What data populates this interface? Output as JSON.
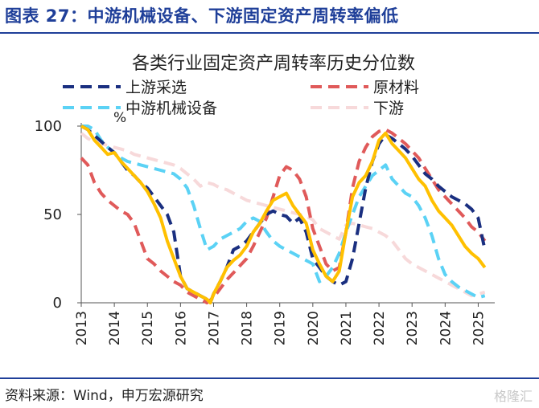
{
  "figure_title": "图表 27：中游机械设备、下游固定资产周转率偏低",
  "source": "资料来源：Wind，申万宏源研究",
  "watermark": "格隆汇",
  "chart_data": {
    "type": "line",
    "title": "各类行业固定资产周转率历史分位数",
    "ylabel": "%",
    "ylim": [
      0,
      100
    ],
    "xlim": [
      2013,
      2025.5
    ],
    "yticks": [
      0,
      50,
      100
    ],
    "xticks": [
      "2013",
      "2014",
      "2015",
      "2016",
      "2017",
      "2018",
      "2019",
      "2020",
      "2021",
      "2022",
      "2023",
      "2024",
      "2025"
    ],
    "legend_position": "top",
    "series": [
      {
        "name": "上游采选",
        "color": "#1a2f80",
        "dash": "long",
        "points": [
          [
            2013.0,
            100
          ],
          [
            2013.2,
            98
          ],
          [
            2013.5,
            93
          ],
          [
            2013.8,
            88
          ],
          [
            2014.0,
            85
          ],
          [
            2014.2,
            80
          ],
          [
            2014.4,
            75
          ],
          [
            2014.6,
            72
          ],
          [
            2014.8,
            68
          ],
          [
            2015.0,
            65
          ],
          [
            2015.2,
            60
          ],
          [
            2015.4,
            55
          ],
          [
            2015.6,
            50
          ],
          [
            2015.8,
            40
          ],
          [
            2016.0,
            15
          ],
          [
            2016.2,
            8
          ],
          [
            2016.4,
            6
          ],
          [
            2016.6,
            4
          ],
          [
            2016.8,
            2
          ],
          [
            2016.9,
            0
          ],
          [
            2017.0,
            5
          ],
          [
            2017.2,
            12
          ],
          [
            2017.4,
            20
          ],
          [
            2017.6,
            30
          ],
          [
            2017.8,
            32
          ],
          [
            2018.0,
            35
          ],
          [
            2018.2,
            40
          ],
          [
            2018.4,
            45
          ],
          [
            2018.6,
            50
          ],
          [
            2018.8,
            52
          ],
          [
            2019.0,
            50
          ],
          [
            2019.2,
            49
          ],
          [
            2019.4,
            45
          ],
          [
            2019.6,
            48
          ],
          [
            2019.8,
            40
          ],
          [
            2020.0,
            25
          ],
          [
            2020.2,
            20
          ],
          [
            2020.4,
            15
          ],
          [
            2020.6,
            12
          ],
          [
            2020.8,
            10
          ],
          [
            2021.0,
            12
          ],
          [
            2021.2,
            25
          ],
          [
            2021.4,
            45
          ],
          [
            2021.6,
            65
          ],
          [
            2021.8,
            80
          ],
          [
            2022.0,
            90
          ],
          [
            2022.2,
            95
          ],
          [
            2022.4,
            93
          ],
          [
            2022.6,
            90
          ],
          [
            2022.8,
            87
          ],
          [
            2023.0,
            83
          ],
          [
            2023.2,
            78
          ],
          [
            2023.4,
            73
          ],
          [
            2023.6,
            70
          ],
          [
            2023.8,
            66
          ],
          [
            2024.0,
            63
          ],
          [
            2024.2,
            60
          ],
          [
            2024.4,
            58
          ],
          [
            2024.6,
            56
          ],
          [
            2024.8,
            53
          ],
          [
            2025.0,
            48
          ],
          [
            2025.2,
            30
          ]
        ]
      },
      {
        "name": "原材料",
        "color": "#e05a5a",
        "dash": "long",
        "points": [
          [
            2013.0,
            82
          ],
          [
            2013.2,
            78
          ],
          [
            2013.4,
            68
          ],
          [
            2013.6,
            62
          ],
          [
            2013.8,
            58
          ],
          [
            2014.0,
            55
          ],
          [
            2014.2,
            52
          ],
          [
            2014.4,
            50
          ],
          [
            2014.6,
            45
          ],
          [
            2014.8,
            35
          ],
          [
            2015.0,
            25
          ],
          [
            2015.2,
            22
          ],
          [
            2015.4,
            18
          ],
          [
            2015.6,
            15
          ],
          [
            2015.8,
            12
          ],
          [
            2016.0,
            10
          ],
          [
            2016.2,
            6
          ],
          [
            2016.4,
            4
          ],
          [
            2016.6,
            2
          ],
          [
            2016.8,
            0
          ],
          [
            2017.0,
            3
          ],
          [
            2017.2,
            8
          ],
          [
            2017.4,
            13
          ],
          [
            2017.6,
            17
          ],
          [
            2017.8,
            21
          ],
          [
            2018.0,
            25
          ],
          [
            2018.2,
            32
          ],
          [
            2018.4,
            40
          ],
          [
            2018.6,
            48
          ],
          [
            2018.8,
            60
          ],
          [
            2019.0,
            72
          ],
          [
            2019.2,
            77
          ],
          [
            2019.4,
            75
          ],
          [
            2019.6,
            70
          ],
          [
            2019.8,
            60
          ],
          [
            2020.0,
            42
          ],
          [
            2020.2,
            32
          ],
          [
            2020.4,
            22
          ],
          [
            2020.6,
            18
          ],
          [
            2020.8,
            20
          ],
          [
            2021.0,
            40
          ],
          [
            2021.2,
            65
          ],
          [
            2021.4,
            80
          ],
          [
            2021.6,
            88
          ],
          [
            2021.8,
            94
          ],
          [
            2022.0,
            97
          ],
          [
            2022.2,
            98
          ],
          [
            2022.4,
            96
          ],
          [
            2022.6,
            93
          ],
          [
            2022.8,
            90
          ],
          [
            2023.0,
            86
          ],
          [
            2023.2,
            82
          ],
          [
            2023.4,
            76
          ],
          [
            2023.6,
            70
          ],
          [
            2023.8,
            64
          ],
          [
            2024.0,
            60
          ],
          [
            2024.2,
            56
          ],
          [
            2024.4,
            52
          ],
          [
            2024.6,
            48
          ],
          [
            2024.8,
            43
          ],
          [
            2025.0,
            40
          ],
          [
            2025.2,
            35
          ]
        ]
      },
      {
        "name": "中游机械设备",
        "color": "#5bd2f5",
        "dash": "long",
        "points": [
          [
            2013.0,
            100
          ],
          [
            2013.2,
            100
          ],
          [
            2013.4,
            98
          ],
          [
            2013.6,
            92
          ],
          [
            2013.8,
            88
          ],
          [
            2014.0,
            85
          ],
          [
            2014.2,
            82
          ],
          [
            2014.4,
            80
          ],
          [
            2014.6,
            79
          ],
          [
            2014.8,
            78
          ],
          [
            2015.0,
            77
          ],
          [
            2015.2,
            76
          ],
          [
            2015.4,
            75
          ],
          [
            2015.6,
            74
          ],
          [
            2015.8,
            73
          ],
          [
            2016.0,
            70
          ],
          [
            2016.2,
            65
          ],
          [
            2016.4,
            55
          ],
          [
            2016.6,
            42
          ],
          [
            2016.8,
            30
          ],
          [
            2017.0,
            32
          ],
          [
            2017.2,
            36
          ],
          [
            2017.4,
            38
          ],
          [
            2017.6,
            40
          ],
          [
            2017.8,
            42
          ],
          [
            2018.0,
            46
          ],
          [
            2018.2,
            48
          ],
          [
            2018.4,
            46
          ],
          [
            2018.6,
            40
          ],
          [
            2018.8,
            35
          ],
          [
            2019.0,
            32
          ],
          [
            2019.2,
            30
          ],
          [
            2019.4,
            28
          ],
          [
            2019.6,
            26
          ],
          [
            2019.8,
            24
          ],
          [
            2020.0,
            22
          ],
          [
            2020.2,
            12
          ],
          [
            2020.4,
            15
          ],
          [
            2020.6,
            20
          ],
          [
            2020.8,
            28
          ],
          [
            2021.0,
            40
          ],
          [
            2021.2,
            50
          ],
          [
            2021.4,
            60
          ],
          [
            2021.6,
            66
          ],
          [
            2021.8,
            72
          ],
          [
            2022.0,
            75
          ],
          [
            2022.2,
            78
          ],
          [
            2022.4,
            70
          ],
          [
            2022.6,
            66
          ],
          [
            2022.8,
            62
          ],
          [
            2023.0,
            60
          ],
          [
            2023.2,
            55
          ],
          [
            2023.4,
            48
          ],
          [
            2023.6,
            38
          ],
          [
            2023.8,
            25
          ],
          [
            2024.0,
            16
          ],
          [
            2024.2,
            12
          ],
          [
            2024.4,
            9
          ],
          [
            2024.6,
            7
          ],
          [
            2024.8,
            5
          ],
          [
            2025.0,
            3
          ],
          [
            2025.2,
            4
          ]
        ]
      },
      {
        "name": "下游",
        "color": "#f7d9da",
        "dash": "long",
        "points": [
          [
            2013.0,
            96
          ],
          [
            2013.2,
            93
          ],
          [
            2013.4,
            91
          ],
          [
            2013.6,
            90
          ],
          [
            2013.8,
            89
          ],
          [
            2014.0,
            88
          ],
          [
            2014.2,
            87
          ],
          [
            2014.4,
            86
          ],
          [
            2014.6,
            84
          ],
          [
            2014.8,
            83
          ],
          [
            2015.0,
            82
          ],
          [
            2015.2,
            81
          ],
          [
            2015.4,
            80
          ],
          [
            2015.6,
            79
          ],
          [
            2015.8,
            78
          ],
          [
            2016.0,
            76
          ],
          [
            2016.2,
            73
          ],
          [
            2016.4,
            70
          ],
          [
            2016.6,
            66
          ],
          [
            2016.8,
            68
          ],
          [
            2017.0,
            67
          ],
          [
            2017.2,
            65
          ],
          [
            2017.4,
            64
          ],
          [
            2017.6,
            62
          ],
          [
            2017.8,
            60
          ],
          [
            2018.0,
            58
          ],
          [
            2018.2,
            57
          ],
          [
            2018.4,
            56
          ],
          [
            2018.6,
            55
          ],
          [
            2018.8,
            54
          ],
          [
            2019.0,
            53
          ],
          [
            2019.2,
            52
          ],
          [
            2019.4,
            51
          ],
          [
            2019.6,
            50
          ],
          [
            2019.8,
            49
          ],
          [
            2020.0,
            47
          ],
          [
            2020.2,
            42
          ],
          [
            2020.4,
            40
          ],
          [
            2020.6,
            38
          ],
          [
            2020.8,
            36
          ],
          [
            2021.0,
            44
          ],
          [
            2021.2,
            45
          ],
          [
            2021.4,
            44
          ],
          [
            2021.6,
            43
          ],
          [
            2021.8,
            42
          ],
          [
            2022.0,
            40
          ],
          [
            2022.2,
            38
          ],
          [
            2022.4,
            35
          ],
          [
            2022.6,
            30
          ],
          [
            2022.8,
            25
          ],
          [
            2023.0,
            22
          ],
          [
            2023.2,
            20
          ],
          [
            2023.4,
            18
          ],
          [
            2023.6,
            16
          ],
          [
            2023.8,
            14
          ],
          [
            2024.0,
            12
          ],
          [
            2024.2,
            10
          ],
          [
            2024.4,
            8
          ],
          [
            2024.6,
            6
          ],
          [
            2024.8,
            4
          ],
          [
            2025.0,
            5
          ],
          [
            2025.2,
            6
          ]
        ]
      },
      {
        "name": "",
        "color": "#ffc000",
        "dash": "solid",
        "points": [
          [
            2013.0,
            100
          ],
          [
            2013.2,
            98
          ],
          [
            2013.4,
            92
          ],
          [
            2013.6,
            88
          ],
          [
            2013.8,
            84
          ],
          [
            2014.0,
            85
          ],
          [
            2014.2,
            80
          ],
          [
            2014.4,
            76
          ],
          [
            2014.6,
            72
          ],
          [
            2014.8,
            68
          ],
          [
            2015.0,
            63
          ],
          [
            2015.2,
            56
          ],
          [
            2015.4,
            48
          ],
          [
            2015.6,
            35
          ],
          [
            2015.8,
            25
          ],
          [
            2016.0,
            15
          ],
          [
            2016.2,
            8
          ],
          [
            2016.4,
            6
          ],
          [
            2016.6,
            4
          ],
          [
            2016.8,
            2
          ],
          [
            2016.9,
            0
          ],
          [
            2017.0,
            5
          ],
          [
            2017.2,
            12
          ],
          [
            2017.4,
            20
          ],
          [
            2017.6,
            24
          ],
          [
            2017.8,
            27
          ],
          [
            2018.0,
            32
          ],
          [
            2018.2,
            40
          ],
          [
            2018.4,
            45
          ],
          [
            2018.6,
            52
          ],
          [
            2018.8,
            58
          ],
          [
            2019.0,
            60
          ],
          [
            2019.2,
            62
          ],
          [
            2019.4,
            55
          ],
          [
            2019.6,
            50
          ],
          [
            2019.8,
            45
          ],
          [
            2020.0,
            30
          ],
          [
            2020.2,
            22
          ],
          [
            2020.4,
            15
          ],
          [
            2020.6,
            12
          ],
          [
            2020.8,
            18
          ],
          [
            2021.0,
            40
          ],
          [
            2021.2,
            60
          ],
          [
            2021.4,
            68
          ],
          [
            2021.6,
            72
          ],
          [
            2021.8,
            80
          ],
          [
            2022.0,
            92
          ],
          [
            2022.2,
            96
          ],
          [
            2022.4,
            90
          ],
          [
            2022.6,
            86
          ],
          [
            2022.8,
            82
          ],
          [
            2023.0,
            76
          ],
          [
            2023.2,
            70
          ],
          [
            2023.4,
            66
          ],
          [
            2023.6,
            58
          ],
          [
            2023.8,
            52
          ],
          [
            2024.0,
            48
          ],
          [
            2024.2,
            44
          ],
          [
            2024.4,
            38
          ],
          [
            2024.6,
            32
          ],
          [
            2024.8,
            28
          ],
          [
            2025.0,
            25
          ],
          [
            2025.2,
            20
          ]
        ]
      }
    ]
  }
}
